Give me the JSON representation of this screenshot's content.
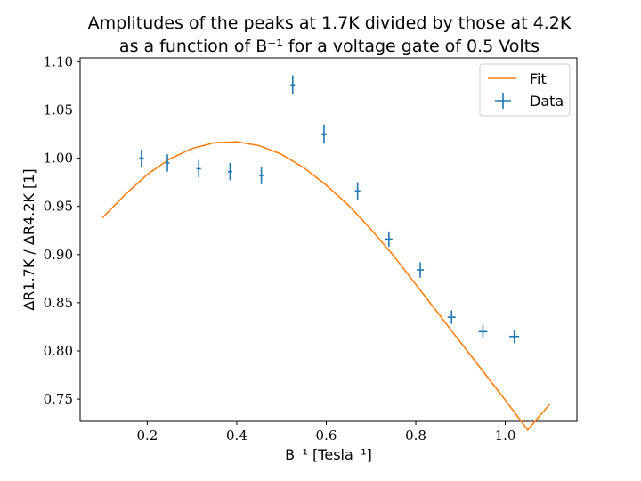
{
  "chart_data": {
    "type": "scatter",
    "title_line1": "Amplitudes of the peaks at 1.7K divided by those at 4.2K",
    "title_line2": "as a function of B⁻¹ for a voltage gate of 0.5 Volts",
    "xlabel": "B⁻¹ [Tesla⁻¹]",
    "ylabel": "ΔR1.7K / ΔR4.2K [1]",
    "xlim": [
      0.05,
      1.16
    ],
    "ylim": [
      0.727,
      1.104
    ],
    "x_ticks": [
      0.2,
      0.4,
      0.6,
      0.8,
      1.0
    ],
    "x_tick_labels": [
      "0.2",
      "0.4",
      "0.6",
      "0.8",
      "1.0"
    ],
    "y_ticks": [
      0.75,
      0.8,
      0.85,
      0.9,
      0.95,
      1.0,
      1.05,
      1.1
    ],
    "y_tick_labels": [
      "0.75",
      "0.80",
      "0.85",
      "0.90",
      "0.95",
      "1.00",
      "1.05",
      "1.10"
    ],
    "grid": false,
    "legend_position": "top-right",
    "legend": [
      {
        "label": "Fit",
        "color": "#ff7f0e",
        "kind": "line"
      },
      {
        "label": "Data",
        "color": "#1f77b4",
        "kind": "errorbar"
      }
    ],
    "series": [
      {
        "name": "Data",
        "color": "#1f77b4",
        "x": [
          0.187,
          0.245,
          0.315,
          0.385,
          0.455,
          0.525,
          0.595,
          0.67,
          0.74,
          0.81,
          0.88,
          0.95,
          1.02
        ],
        "y": [
          1.0,
          0.995,
          0.989,
          0.986,
          0.982,
          1.076,
          1.025,
          0.966,
          0.916,
          0.884,
          0.835,
          0.82,
          0.815
        ],
        "yerr": [
          0.009,
          0.009,
          0.009,
          0.009,
          0.009,
          0.01,
          0.01,
          0.009,
          0.008,
          0.008,
          0.007,
          0.007,
          0.007
        ],
        "xerr": [
          0.005,
          0.005,
          0.005,
          0.005,
          0.005,
          0.005,
          0.005,
          0.006,
          0.008,
          0.008,
          0.009,
          0.01,
          0.011
        ]
      },
      {
        "name": "Fit",
        "color": "#ff7f0e",
        "x": [
          0.1,
          0.15,
          0.2,
          0.25,
          0.3,
          0.35,
          0.4,
          0.45,
          0.5,
          0.55,
          0.6,
          0.65,
          0.7,
          0.75,
          0.8,
          0.85,
          0.9,
          0.95,
          1.0,
          1.05,
          1.1
        ],
        "y": [
          0.938,
          0.962,
          0.983,
          0.999,
          1.01,
          1.016,
          1.017,
          1.013,
          1.004,
          0.99,
          0.972,
          0.951,
          0.926,
          0.899,
          0.869,
          0.839,
          0.809,
          0.779,
          0.749,
          0.718,
          0.745
        ]
      }
    ]
  }
}
